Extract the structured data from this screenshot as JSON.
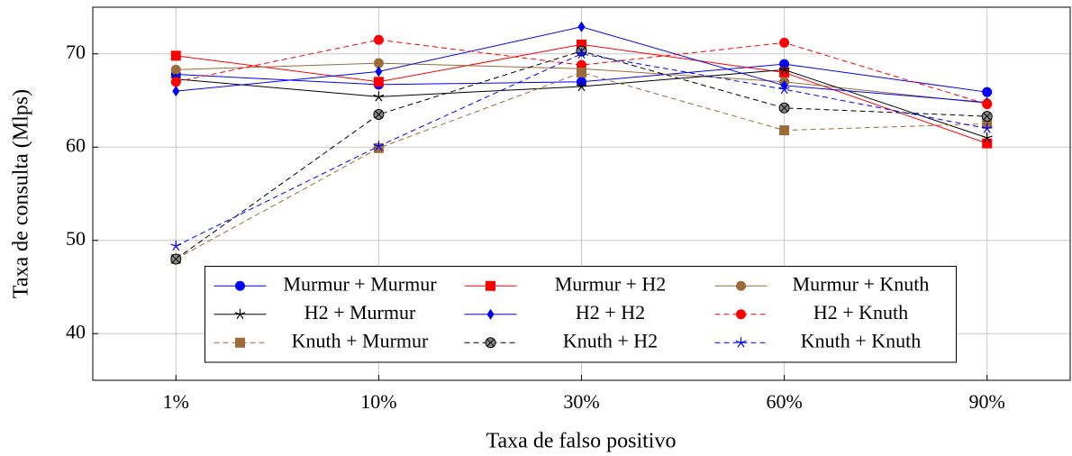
{
  "chart_data": {
    "type": "line",
    "x_label": "Taxa de falso positivo",
    "y_label": "Taxa de consulta (Mlps)",
    "categories": [
      "1%",
      "10%",
      "30%",
      "60%",
      "90%"
    ],
    "ylim": [
      35,
      75
    ],
    "yticks": [
      40,
      50,
      60,
      70
    ],
    "grid": true,
    "legend_position": "lower center",
    "series": [
      {
        "name": "Murmur + Murmur",
        "color": "#0000ff",
        "style": "solid",
        "marker": "circle",
        "values": [
          67.8,
          66.7,
          67.0,
          68.9,
          65.9
        ]
      },
      {
        "name": "Murmur + H2",
        "color": "#ff0000",
        "style": "solid",
        "marker": "square",
        "values": [
          69.8,
          67.0,
          71.0,
          68.0,
          60.4
        ]
      },
      {
        "name": "Murmur + Knuth",
        "color": "#9c6b3a",
        "style": "solid",
        "marker": "circle",
        "values": [
          68.3,
          69.0,
          68.4,
          67.0,
          64.7
        ]
      },
      {
        "name": "H2 + Murmur",
        "color": "#000000",
        "style": "solid",
        "marker": "star",
        "values": [
          67.3,
          65.4,
          66.5,
          68.3,
          61.0
        ]
      },
      {
        "name": "H2 + H2",
        "color": "#0000ff",
        "style": "solid",
        "marker": "diamond",
        "values": [
          66.0,
          68.1,
          72.9,
          66.6,
          64.8
        ]
      },
      {
        "name": "H2 + Knuth",
        "color": "#ff0000",
        "style": "dashed",
        "marker": "circle",
        "values": [
          67.0,
          71.5,
          68.8,
          71.2,
          64.6
        ]
      },
      {
        "name": "Knuth + Murmur",
        "color": "#9c6b3a",
        "style": "dashed",
        "marker": "square",
        "values": [
          48.0,
          59.9,
          68.0,
          61.8,
          62.5
        ]
      },
      {
        "name": "Knuth + H2",
        "color": "#000000",
        "style": "dashed",
        "marker": "otimes",
        "values": [
          48.0,
          63.5,
          70.3,
          64.2,
          63.3
        ]
      },
      {
        "name": "Knuth + Knuth",
        "color": "#0000ff",
        "style": "dashed",
        "marker": "star",
        "values": [
          49.4,
          60.1,
          70.0,
          66.2,
          62.0
        ]
      }
    ]
  }
}
